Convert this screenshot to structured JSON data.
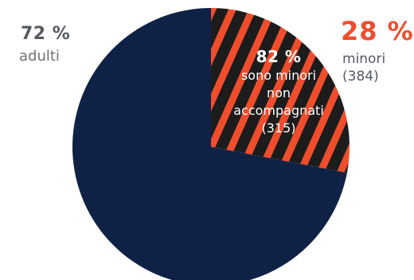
{
  "chart_data": {
    "type": "pie",
    "slices": [
      {
        "label": "adulti",
        "percent_label": "72 %",
        "value": 72,
        "color": "#0f2246"
      },
      {
        "label": "minori",
        "percent_label": "28 %",
        "count_label": "(384)",
        "value": 28,
        "color": "#ef4d2c",
        "pattern": "striped"
      }
    ],
    "inner_annotation": {
      "percent_label": "82 %",
      "lines": [
        "sono minori",
        "non",
        "accompagnati",
        "(315)"
      ]
    },
    "colors": {
      "adults": "#0f2246",
      "minors": "#ef4d2c",
      "stripe": "#1c1c1c"
    }
  }
}
